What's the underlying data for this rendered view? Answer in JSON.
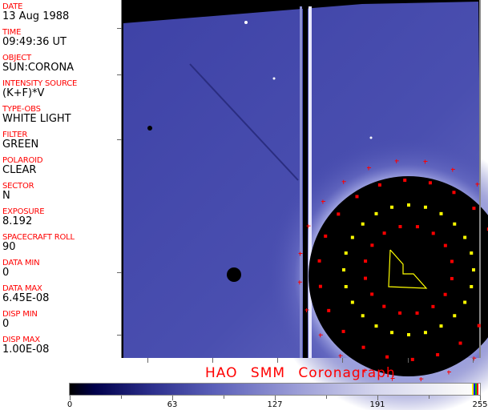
{
  "fields": [
    {
      "label": "DATE",
      "value": "13 Aug 1988"
    },
    {
      "label": "TIME",
      "value": "09:49:36 UT"
    },
    {
      "label": "OBJECT",
      "value": "SUN:CORONA"
    },
    {
      "label": "INTENSITY SOURCE",
      "value": "(K+F)*V"
    },
    {
      "label": "TYPE-OBS",
      "value": "WHITE LIGHT"
    },
    {
      "label": "FILTER",
      "value": "GREEN"
    },
    {
      "label": "POLAROID",
      "value": "CLEAR"
    },
    {
      "label": "SECTOR",
      "value": "N"
    },
    {
      "label": "EXPOSURE",
      "value": "8.192"
    },
    {
      "label": "SPACECRAFT ROLL",
      "value": "90"
    },
    {
      "label": "DATA MIN",
      "value": "0"
    },
    {
      "label": "DATA MAX",
      "value": "6.45E-08"
    },
    {
      "label": "DISP MIN",
      "value": "0"
    },
    {
      "label": "DISP MAX",
      "value": "1.00E-08"
    }
  ],
  "title": "HAO  SMM Coronagraph",
  "colorbar": {
    "ticks": [
      "0",
      "63",
      "127",
      "191",
      "255"
    ],
    "palette_end_colors": [
      "#ffff00",
      "#0000ff",
      "#00c000",
      "#ff0000"
    ]
  },
  "colors": {
    "label": "#ff0000",
    "overlay_marks": "#ff0000",
    "overlay_ring": "#ffff00",
    "image_tint": "#3a3d9e"
  }
}
